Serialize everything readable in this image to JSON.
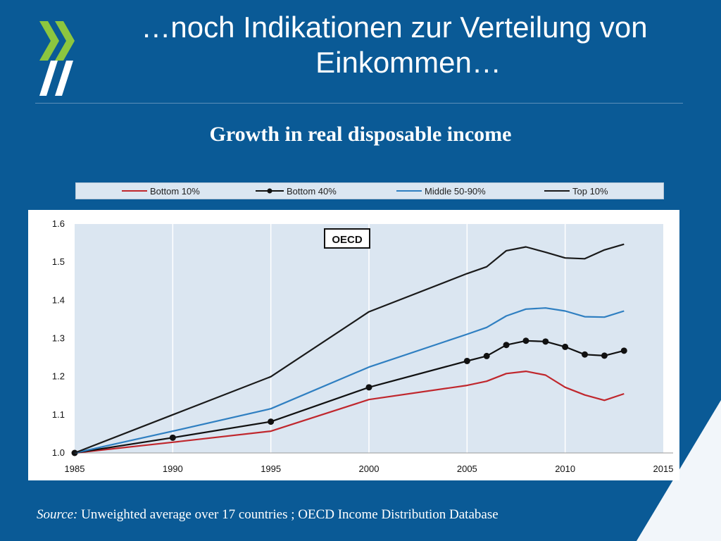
{
  "slide": {
    "title_line1": "…noch Indikationen zur Verteilung von",
    "title_line2": "Einkommen…",
    "source_label": "Source:",
    "source_text": "Unweighted average over 17 countries ; OECD Income Distribution Database"
  },
  "colors": {
    "background": "#0a5a96",
    "logo_green": "#8cc63f",
    "plot_bg": "#dbe6f1",
    "bottom10": "#c0272d",
    "bottom40": "#111111",
    "middle": "#2f7fc1",
    "top10": "#1a1a1a"
  },
  "chart_data": {
    "type": "line",
    "title": "Growth in real disposable income",
    "annotation": "OECD",
    "xlabel": "",
    "ylabel": "",
    "xlim": [
      1985,
      2015
    ],
    "ylim": [
      1.0,
      1.6
    ],
    "xticks": [
      "1985",
      "1990",
      "1995",
      "2000",
      "2005",
      "2010",
      "2015"
    ],
    "yticks": [
      "1.0",
      "1.1",
      "1.2",
      "1.3",
      "1.4",
      "1.5",
      "1.6"
    ],
    "legend_position": "top",
    "series": [
      {
        "name": "Bottom 10%",
        "markers": false,
        "x": [
          1985,
          1990,
          1995,
          2000,
          2005,
          2006,
          2007,
          2008,
          2009,
          2010,
          2011,
          2012,
          2013
        ],
        "values": [
          1.0,
          1.028,
          1.057,
          1.14,
          1.177,
          1.188,
          1.208,
          1.214,
          1.204,
          1.172,
          1.152,
          1.138,
          1.155
        ]
      },
      {
        "name": "Bottom 40%",
        "markers": true,
        "x": [
          1985,
          1990,
          1995,
          2000,
          2005,
          2006,
          2007,
          2008,
          2009,
          2010,
          2011,
          2012,
          2013
        ],
        "values": [
          1.0,
          1.04,
          1.082,
          1.172,
          1.241,
          1.254,
          1.283,
          1.294,
          1.292,
          1.278,
          1.258,
          1.255,
          1.268
        ]
      },
      {
        "name": "Middle 50-90%",
        "markers": false,
        "x": [
          1985,
          1990,
          1995,
          2000,
          2005,
          2006,
          2007,
          2008,
          2009,
          2010,
          2011,
          2012,
          2013
        ],
        "values": [
          1.0,
          1.057,
          1.116,
          1.225,
          1.311,
          1.329,
          1.359,
          1.377,
          1.38,
          1.372,
          1.357,
          1.356,
          1.372
        ]
      },
      {
        "name": "Top 10%",
        "markers": false,
        "x": [
          1985,
          1990,
          1995,
          2000,
          2005,
          2006,
          2007,
          2008,
          2009,
          2010,
          2011,
          2012,
          2013
        ],
        "values": [
          1.0,
          1.1,
          1.2,
          1.37,
          1.47,
          1.488,
          1.53,
          1.54,
          1.526,
          1.511,
          1.509,
          1.532,
          1.547
        ]
      }
    ]
  }
}
